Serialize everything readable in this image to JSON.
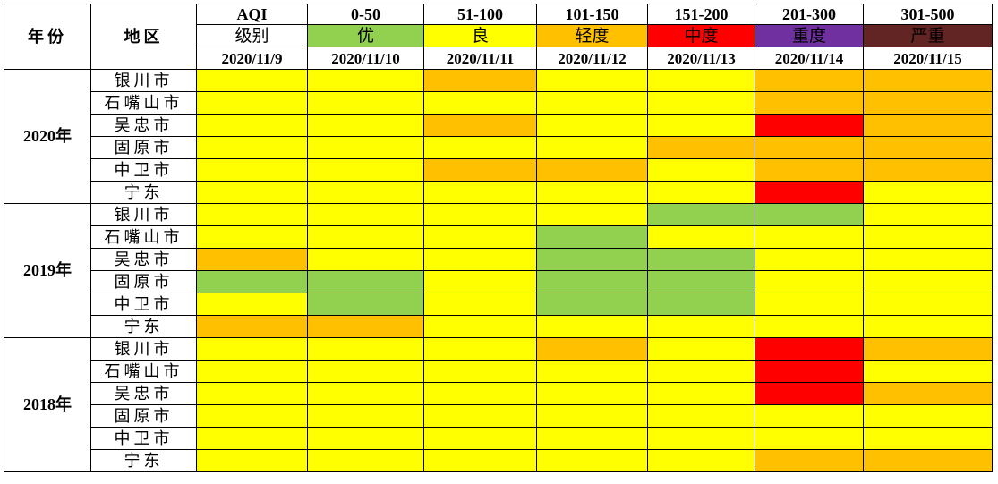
{
  "header": {
    "year_label": "年份",
    "region_label": "地区",
    "aqi_label": "AQI",
    "level_label": "级别",
    "ranges": [
      "0-50",
      "51-100",
      "101-150",
      "151-200",
      "201-300",
      "301-500"
    ],
    "levels": [
      "优",
      "良",
      "轻度",
      "中度",
      "重度",
      "严重"
    ],
    "level_colors": [
      "#92d050",
      "#ffff00",
      "#ffc000",
      "#ff0000",
      "#7030a0",
      "#632523"
    ],
    "level_text_colors": [
      "#000000",
      "#000000",
      "#000000",
      "#000000",
      "#000000",
      "#000000"
    ],
    "dates": [
      "2020/11/9",
      "2020/11/10",
      "2020/11/11",
      "2020/11/12",
      "2020/11/13",
      "2020/11/14",
      "2020/11/15"
    ]
  },
  "color_map": {
    "good": "#92d050",
    "moderate": "#ffff00",
    "light": "#ffc000",
    "medium": "#ff0000"
  },
  "years": [
    {
      "label": "2020年",
      "rows": [
        {
          "region": "银川市",
          "cells": [
            "moderate",
            "moderate",
            "light",
            "moderate",
            "moderate",
            "light",
            "light"
          ]
        },
        {
          "region": "石嘴山市",
          "cells": [
            "moderate",
            "moderate",
            "moderate",
            "moderate",
            "moderate",
            "light",
            "light"
          ]
        },
        {
          "region": "吴忠市",
          "cells": [
            "moderate",
            "moderate",
            "light",
            "moderate",
            "moderate",
            "medium",
            "light"
          ]
        },
        {
          "region": "固原市",
          "cells": [
            "moderate",
            "moderate",
            "moderate",
            "moderate",
            "light",
            "light",
            "light"
          ]
        },
        {
          "region": "中卫市",
          "cells": [
            "moderate",
            "moderate",
            "light",
            "light",
            "moderate",
            "light",
            "light"
          ]
        },
        {
          "region": "宁东",
          "cells": [
            "moderate",
            "moderate",
            "moderate",
            "moderate",
            "moderate",
            "medium",
            "moderate"
          ]
        }
      ]
    },
    {
      "label": "2019年",
      "rows": [
        {
          "region": "银川市",
          "cells": [
            "moderate",
            "moderate",
            "moderate",
            "moderate",
            "good",
            "good",
            "moderate"
          ]
        },
        {
          "region": "石嘴山市",
          "cells": [
            "moderate",
            "moderate",
            "moderate",
            "good",
            "moderate",
            "moderate",
            "moderate"
          ]
        },
        {
          "region": "吴忠市",
          "cells": [
            "light",
            "moderate",
            "moderate",
            "good",
            "good",
            "moderate",
            "moderate"
          ]
        },
        {
          "region": "固原市",
          "cells": [
            "good",
            "good",
            "moderate",
            "good",
            "good",
            "moderate",
            "moderate"
          ]
        },
        {
          "region": "中卫市",
          "cells": [
            "moderate",
            "good",
            "moderate",
            "good",
            "good",
            "moderate",
            "moderate"
          ]
        },
        {
          "region": "宁东",
          "cells": [
            "light",
            "light",
            "moderate",
            "moderate",
            "moderate",
            "moderate",
            "moderate"
          ]
        }
      ]
    },
    {
      "label": "2018年",
      "rows": [
        {
          "region": "银川市",
          "cells": [
            "moderate",
            "moderate",
            "moderate",
            "light",
            "moderate",
            "medium",
            "light"
          ]
        },
        {
          "region": "石嘴山市",
          "cells": [
            "moderate",
            "moderate",
            "moderate",
            "moderate",
            "moderate",
            "medium",
            "moderate"
          ]
        },
        {
          "region": "吴忠市",
          "cells": [
            "moderate",
            "moderate",
            "moderate",
            "moderate",
            "moderate",
            "medium",
            "light"
          ]
        },
        {
          "region": "固原市",
          "cells": [
            "moderate",
            "moderate",
            "moderate",
            "moderate",
            "moderate",
            "moderate",
            "moderate"
          ]
        },
        {
          "region": "中卫市",
          "cells": [
            "moderate",
            "moderate",
            "moderate",
            "moderate",
            "moderate",
            "moderate",
            "moderate"
          ]
        },
        {
          "region": "宁东",
          "cells": [
            "moderate",
            "moderate",
            "moderate",
            "moderate",
            "moderate",
            "light",
            "light"
          ]
        }
      ]
    }
  ]
}
